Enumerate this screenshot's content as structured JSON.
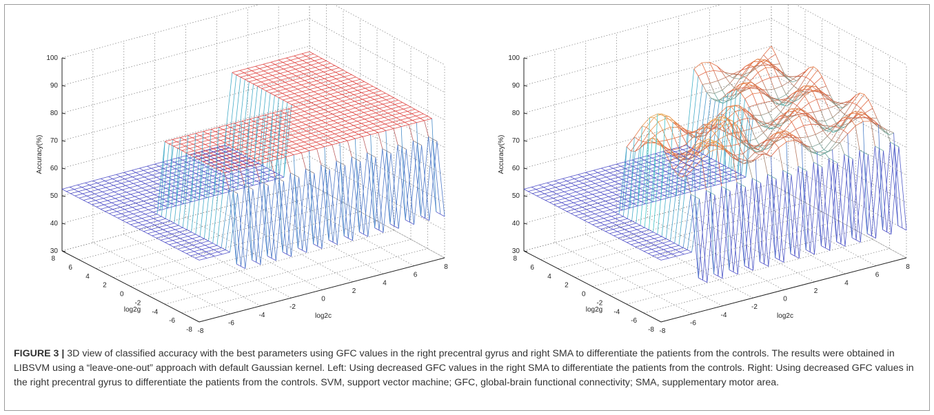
{
  "figure": {
    "label": "FIGURE 3 |",
    "caption": " 3D view of classified accuracy with the best parameters using GFC values in the right precentral gyrus and right SMA to differentiate the patients from the controls. The results were obtained in LIBSVM using a “leave-one-out” approach with default Gaussian kernel. Left: Using decreased GFC values in the right SMA to differentiate the patients from the controls. Right: Using decreased GFC values in the right precentral gyrus to differentiate the patients from the controls. SVM, support vector machine; GFC, global-brain functional connectivity; SMA, supplementary motor area."
  },
  "chart_data": [
    {
      "type": "surface",
      "panel": "left",
      "zlabel": "Accuracy(%)",
      "xlabel": "log2c",
      "ylabel": "log2g",
      "zlim": [
        30,
        100
      ],
      "zticks": [
        "30",
        "40",
        "50",
        "60",
        "70",
        "80",
        "90",
        "100"
      ],
      "xticks": [
        "-8",
        "-6",
        "-4",
        "-2",
        "0",
        "2",
        "4",
        "6",
        "8"
      ],
      "yticks": [
        "-8",
        "-6",
        "-4",
        "-2",
        "0",
        "2",
        "4",
        "6",
        "8"
      ],
      "x_range": [
        -8,
        8
      ],
      "y_range": [
        -8,
        8
      ],
      "grid": true,
      "surface_levels": {
        "low": 52.4,
        "plateau": 78,
        "trough": 45
      },
      "colors": {
        "low": "#5050c8",
        "mid": "#40c8c8",
        "high": "#e04040",
        "peak": "#c0ff80"
      }
    },
    {
      "type": "surface",
      "panel": "right",
      "zlabel": "Accuracy(%)",
      "xlabel": "log2c",
      "ylabel": "log2g",
      "zlim": [
        30,
        100
      ],
      "zticks": [
        "30",
        "40",
        "50",
        "60",
        "70",
        "80",
        "90",
        "100"
      ],
      "xticks": [
        "-8",
        "-6",
        "-4",
        "-2",
        "0",
        "2",
        "4",
        "6",
        "8"
      ],
      "yticks": [
        "-8",
        "-6",
        "-4",
        "-2",
        "0",
        "2",
        "4",
        "6",
        "8"
      ],
      "x_range": [
        -8,
        8
      ],
      "y_range": [
        -8,
        8
      ],
      "grid": true,
      "surface_levels": {
        "low": 52.4,
        "plateau": 76,
        "trough": 40
      },
      "colors": {
        "low": "#5050c8",
        "mid": "#40c8c8",
        "high": "#e06040",
        "peak": "#f0e060"
      }
    }
  ]
}
